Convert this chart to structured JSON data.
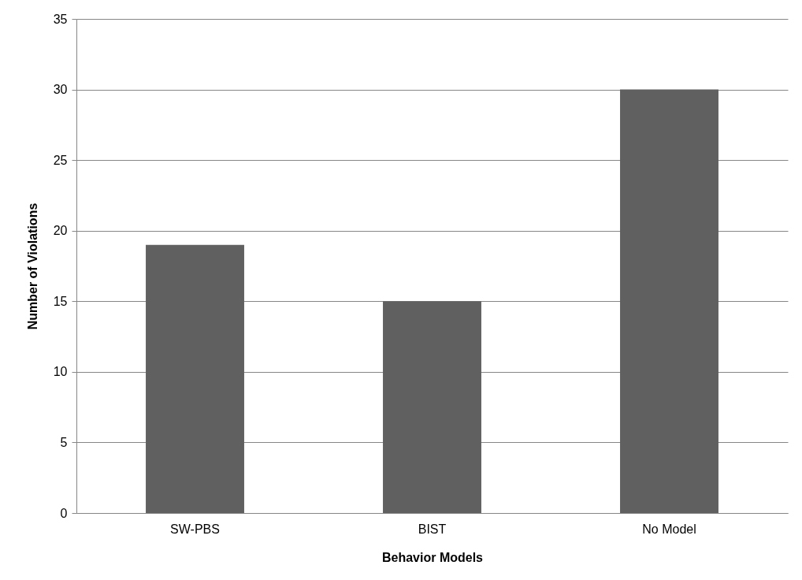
{
  "chart_data": {
    "type": "bar",
    "xlabel": "Behavior Models",
    "ylabel": "Number of Violations",
    "categories": [
      "SW-PBS",
      "BIST",
      "No Model"
    ],
    "values": [
      19,
      15,
      30
    ],
    "color": "#606060",
    "ylim": [
      0,
      35
    ],
    "yticks": [
      0,
      5,
      10,
      15,
      20,
      25,
      30,
      35
    ],
    "grid": "y"
  }
}
